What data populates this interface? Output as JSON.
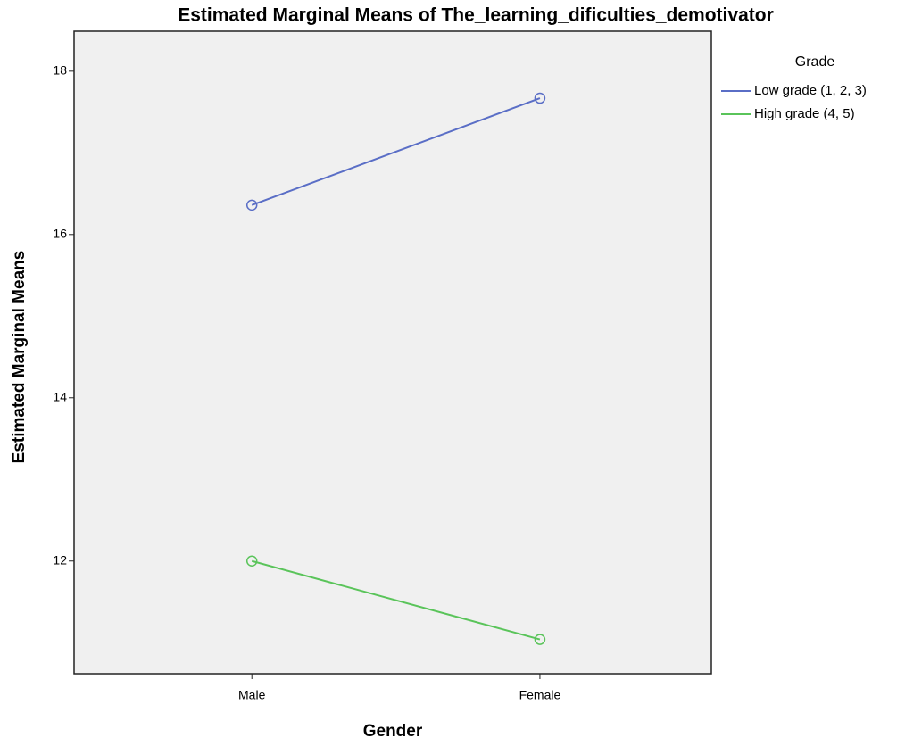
{
  "chart_data": {
    "type": "line",
    "title": "Estimated Marginal Means of The_learning_dificulties_demotivator",
    "x_label": "Gender",
    "y_label": "Estimated Marginal Means",
    "categories": [
      "Male",
      "Female"
    ],
    "legend_title": "Grade",
    "legend_position": "right",
    "series": [
      {
        "name": "Low grade (1, 2, 3)",
        "color": "#5a6ec6",
        "values": [
          16.36,
          17.67
        ]
      },
      {
        "name": "High grade (4, 5)",
        "color": "#5ac45a",
        "values": [
          12.0,
          11.04
        ]
      }
    ],
    "ylim": [
      10.62,
      18.49
    ],
    "yticks": [
      12,
      14,
      16,
      18
    ]
  }
}
